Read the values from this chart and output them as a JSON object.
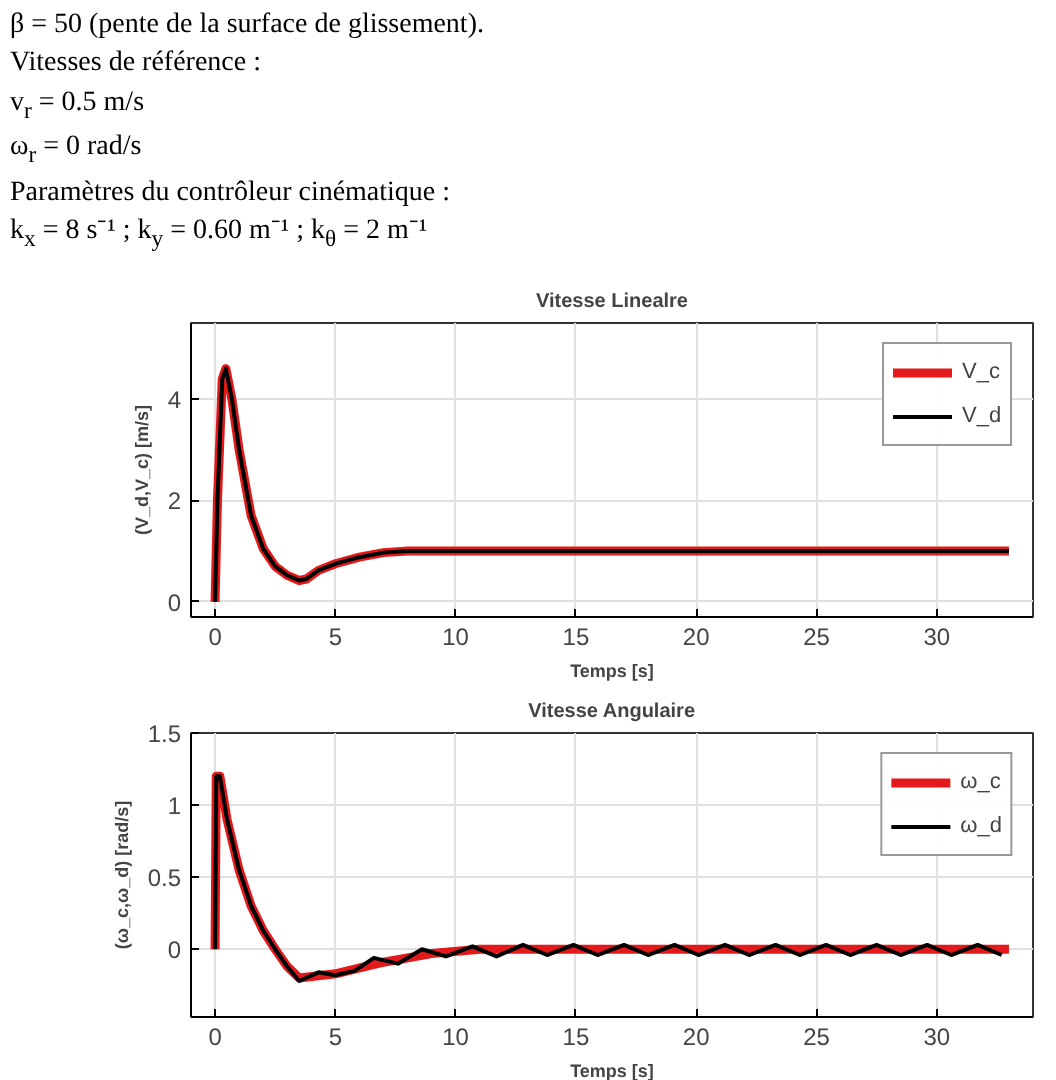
{
  "chart_data": [
    {
      "type": "line",
      "title": "Vitesse Linealre",
      "xlabel": "Temps [s]",
      "ylabel": "(V_d,V_c) [m/s]",
      "annotations": [
        "β = 50 (pente de la surface de glissement).",
        "Vitesses de référence :",
        "v$_{r}$ = 0.5 m/s",
        "ω$_{r}$ = 0 rad/s",
        "Paramètres du contrôleur cinématique :",
        "k$_{x}$ = 8 s⁻¹ ; k$_{y}$ = 0.60 m⁻¹ ; k$_{θ}$ = 2 m⁻¹"
      ],
      "xlim": [
        -1,
        34
      ],
      "xticks": [
        0,
        5,
        10,
        15,
        20,
        25,
        30
      ],
      "ylim": [
        -0.3,
        5.5
      ],
      "yticks": [
        0,
        2,
        4
      ],
      "grid": true,
      "legend": "top right",
      "line_style": "solid",
      "series": [
        {
          "name": "V_c",
          "color": "#e31a1c",
          "x": [
            0,
            0.1,
            0.3,
            0.45,
            0.7,
            1.0,
            1.5,
            2,
            2.5,
            3,
            3.5,
            3.8,
            4.3,
            5,
            6,
            7,
            8,
            33
          ],
          "values": [
            0,
            2,
            4.4,
            4.6,
            4.0,
            3.0,
            1.7,
            1.05,
            0.7,
            0.52,
            0.42,
            0.45,
            0.62,
            0.75,
            0.88,
            0.97,
            1.0,
            1.0
          ]
        },
        {
          "name": "V_d",
          "color": "#000000",
          "x": [
            0,
            0.1,
            0.3,
            0.45,
            0.7,
            1.0,
            1.5,
            2,
            2.5,
            3,
            3.5,
            3.8,
            4.3,
            5,
            6,
            7,
            8,
            33
          ],
          "values": [
            0,
            2,
            4.4,
            4.6,
            4.0,
            3.0,
            1.7,
            1.05,
            0.7,
            0.52,
            0.42,
            0.45,
            0.62,
            0.75,
            0.88,
            0.97,
            1.0,
            1.0
          ]
        }
      ]
    },
    {
      "type": "line",
      "title": "Vitesse Angulaire",
      "xlabel": "Temps [s]",
      "ylabel": "(ω_c,ω_d) [rad/s]",
      "xlim": [
        -1,
        34
      ],
      "xticks": [
        0,
        5,
        10,
        15,
        20,
        25,
        30
      ],
      "ylim": [
        -0.47,
        1.5
      ],
      "yticks": [
        0,
        0.5,
        1,
        1.5
      ],
      "grid": true,
      "legend": "top right",
      "line_style": "solid",
      "series": [
        {
          "name": "ω_c",
          "color": "#e31a1c",
          "x": [
            0,
            0.05,
            0.2,
            0.5,
            1,
            1.5,
            2,
            2.5,
            3,
            3.5,
            5,
            7,
            9,
            11,
            33
          ],
          "values": [
            0,
            1.2,
            1.2,
            0.9,
            0.55,
            0.3,
            0.13,
            0,
            -0.12,
            -0.2,
            -0.17,
            -0.09,
            -0.03,
            0,
            0
          ]
        },
        {
          "name": "ω_d",
          "color": "#000000",
          "x": [
            0,
            0.05,
            0.2,
            0.5,
            1,
            1.5,
            2,
            2.5,
            3,
            3.5,
            4.3,
            5,
            5.8,
            6.6,
            7.6,
            8.6,
            9.6,
            10.7,
            11.7,
            12.8,
            13.8,
            14.9,
            15.9,
            17,
            18,
            19.1,
            20.1,
            21.2,
            22.2,
            23.3,
            24.3,
            25.4,
            26.4,
            27.5,
            28.5,
            29.6,
            30.6,
            31.7,
            32.7
          ],
          "values": [
            0,
            1.2,
            1.2,
            0.9,
            0.55,
            0.3,
            0.13,
            0,
            -0.12,
            -0.22,
            -0.16,
            -0.18,
            -0.15,
            -0.06,
            -0.1,
            0,
            -0.05,
            0.02,
            -0.05,
            0.03,
            -0.04,
            0.03,
            -0.04,
            0.03,
            -0.04,
            0.03,
            -0.04,
            0.03,
            -0.04,
            0.03,
            -0.04,
            0.03,
            -0.04,
            0.03,
            -0.04,
            0.03,
            -0.04,
            0.03,
            -0.04
          ]
        }
      ]
    }
  ]
}
